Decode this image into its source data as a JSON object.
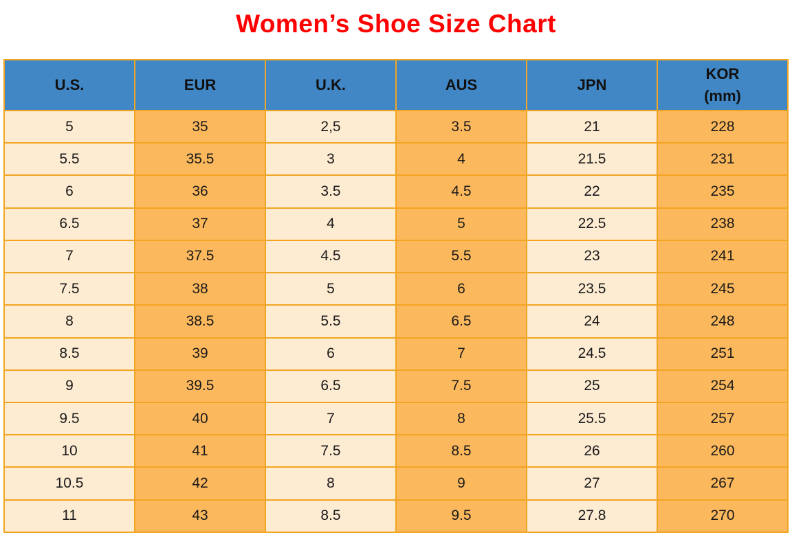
{
  "title": "Women’s Shoe Size Chart",
  "colors": {
    "title_red": "#ff0000",
    "header_blue": "#4187c5",
    "cell_orange": "#fcb85c",
    "cell_cream": "#fdebd2",
    "border_orange": "#f2a522",
    "text_dark": "#1a1a1a"
  },
  "chart_data": {
    "type": "table",
    "title": "Women’s Shoe Size Chart",
    "columns": [
      {
        "label": "U.S."
      },
      {
        "label": "EUR"
      },
      {
        "label": "U.K."
      },
      {
        "label": "AUS"
      },
      {
        "label": "JPN"
      },
      {
        "label": "KOR",
        "sublabel": "(mm)"
      }
    ],
    "rows": [
      [
        "5",
        "35",
        "2,5",
        "3.5",
        "21",
        "228"
      ],
      [
        "5.5",
        "35.5",
        "3",
        "4",
        "21.5",
        "231"
      ],
      [
        "6",
        "36",
        "3.5",
        "4.5",
        "22",
        "235"
      ],
      [
        "6.5",
        "37",
        "4",
        "5",
        "22.5",
        "238"
      ],
      [
        "7",
        "37.5",
        "4.5",
        "5.5",
        "23",
        "241"
      ],
      [
        "7.5",
        "38",
        "5",
        "6",
        "23.5",
        "245"
      ],
      [
        "8",
        "38.5",
        "5.5",
        "6.5",
        "24",
        "248"
      ],
      [
        "8.5",
        "39",
        "6",
        "7",
        "24.5",
        "251"
      ],
      [
        "9",
        "39.5",
        "6.5",
        "7.5",
        "25",
        "254"
      ],
      [
        "9.5",
        "40",
        "7",
        "8",
        "25.5",
        "257"
      ],
      [
        "10",
        "41",
        "7.5",
        "8.5",
        "26",
        "260"
      ],
      [
        "10.5",
        "42",
        "8",
        "9",
        "27",
        "267"
      ],
      [
        "11",
        "43",
        "8.5",
        "9.5",
        "27.8",
        "270"
      ]
    ]
  }
}
